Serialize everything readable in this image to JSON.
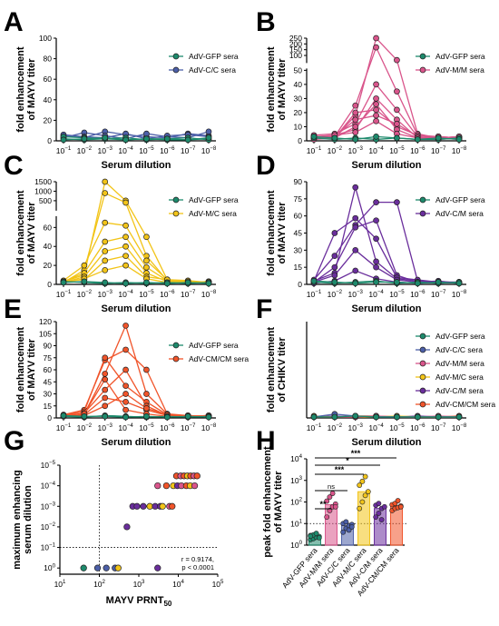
{
  "figure": {
    "colors": {
      "GFP": "#1d8a6c",
      "CC": "#4c5fa8",
      "MM": "#d9558b",
      "MC": "#f2c418",
      "CM": "#6a2e9c",
      "CMCM": "#f0542a"
    },
    "panels": [
      {
        "letter": "A",
        "series": [
          "GFP",
          "CC"
        ],
        "legend": [
          "AdV-GFP sera",
          "AdV-C/C sera"
        ]
      },
      {
        "letter": "B",
        "series": [
          "GFP",
          "MM"
        ],
        "legend": [
          "AdV-GFP sera",
          "AdV-M/M sera"
        ]
      },
      {
        "letter": "C",
        "series": [
          "GFP",
          "MC"
        ],
        "legend": [
          "AdV-GFP sera",
          "AdV-M/C sera"
        ]
      },
      {
        "letter": "D",
        "series": [
          "GFP",
          "CM"
        ],
        "legend": [
          "AdV-GFP sera",
          "AdV-C/M sera"
        ]
      },
      {
        "letter": "E",
        "series": [
          "GFP",
          "CMCM"
        ],
        "legend": [
          "AdV-GFP sera",
          "AdV-CM/CM sera"
        ]
      },
      {
        "letter": "F",
        "series": [
          "GFP",
          "CC",
          "MM",
          "MC",
          "CM",
          "CMCM"
        ],
        "legend": [
          "AdV-GFP sera",
          "AdV-C/C sera",
          "AdV-M/M sera",
          "AdV-M/C sera",
          "AdV-C/M sera",
          "AdV-CM/CM sera"
        ]
      },
      {
        "letter": "G"
      },
      {
        "letter": "H"
      }
    ],
    "xlabel_dilution": "Serum dilution",
    "ylabel_mayv": [
      "fold enhancement",
      "of MAYV titer"
    ],
    "ylabel_chikv": [
      "fold enhancement",
      "of CHIKV titer"
    ],
    "ylabel_g": [
      "maximum enhancing",
      "serum dilution"
    ],
    "ylabel_h": [
      "peak fold enhancement",
      "of MAYV titer"
    ],
    "xlabel_g": "MAYV PRNT50",
    "stats_g": [
      "r = 0.9174,",
      "p < 0.0001"
    ],
    "h_categories": [
      "AdV-GFP sera",
      "AdV-M/M sera",
      "AdV-C/C sera",
      "AdV-M/C sera",
      "AdV-C/M sera",
      "AdV-CM/CM sera"
    ],
    "h_sig": [
      "**",
      "ns",
      "***",
      "*",
      "***"
    ]
  },
  "chart_data": [
    {
      "panel": "A",
      "type": "line",
      "x_exponents": [
        -1,
        -2,
        -3,
        -4,
        -5,
        -6,
        -7,
        -8
      ],
      "ylim": [
        0,
        100
      ],
      "yticks": [
        0,
        20,
        40,
        60,
        80,
        100
      ],
      "series": [
        {
          "name": "AdV-GFP sera",
          "values": [
            [
              2,
              1,
              2,
              1,
              2,
              1,
              1,
              2
            ],
            [
              4,
              3,
              2,
              3,
              1,
              2,
              3,
              1
            ],
            [
              1,
              2,
              3,
              1,
              2,
              2,
              1,
              3
            ]
          ]
        },
        {
          "name": "AdV-C/C sera",
          "values": [
            [
              5,
              3,
              9,
              6,
              4,
              3,
              7,
              5
            ],
            [
              3,
              8,
              5,
              2,
              7,
              4,
              3,
              9
            ],
            [
              6,
              4,
              3,
              7,
              2,
              5,
              6,
              4
            ]
          ]
        }
      ]
    },
    {
      "panel": "B",
      "type": "line",
      "y_break": true,
      "x_exponents": [
        -1,
        -2,
        -3,
        -4,
        -5,
        -6,
        -7,
        -8
      ],
      "ylim_low": [
        0,
        50
      ],
      "ylim_high": [
        50,
        250
      ],
      "yticks": [
        0,
        10,
        20,
        30,
        40,
        50,
        100,
        150,
        200,
        250
      ],
      "series": [
        {
          "name": "AdV-GFP sera",
          "values": [
            [
              2,
              1,
              2,
              1,
              2,
              1,
              1,
              2
            ],
            [
              3,
              2,
              1,
              3,
              2,
              1,
              2,
              1
            ]
          ]
        },
        {
          "name": "AdV-M/M sera",
          "values": [
            [
              3,
              2,
              18,
              250,
              60,
              5,
              2,
              3
            ],
            [
              2,
              3,
              25,
              170,
              35,
              4,
              3,
              2
            ],
            [
              4,
              5,
              12,
              40,
              22,
              3,
              2,
              1
            ],
            [
              2,
              4,
              8,
              30,
              15,
              2,
              3,
              2
            ],
            [
              3,
              2,
              20,
              22,
              10,
              4,
              2,
              3
            ],
            [
              2,
              3,
              15,
              18,
              12,
              3,
              1,
              2
            ],
            [
              1,
              2,
              10,
              26,
              8,
              2,
              3,
              2
            ],
            [
              3,
              4,
              6,
              14,
              5,
              2,
              2,
              3
            ]
          ]
        }
      ]
    },
    {
      "panel": "C",
      "type": "line",
      "y_break": true,
      "x_exponents": [
        -1,
        -2,
        -3,
        -4,
        -5,
        -6,
        -7,
        -8
      ],
      "ylim_low": [
        0,
        70
      ],
      "ylim_high": [
        70,
        1500
      ],
      "yticks": [
        0,
        20,
        40,
        60,
        500,
        1000,
        1500
      ],
      "series": [
        {
          "name": "AdV-GFP sera",
          "values": [
            [
              3,
              2,
              1,
              2,
              1,
              2,
              1,
              2
            ],
            [
              2,
              3,
              2,
              1,
              2,
              1,
              2,
              1
            ]
          ]
        },
        {
          "name": "AdV-M/C sera",
          "values": [
            [
              3,
              10,
              1500,
              500,
              50,
              5,
              2,
              3
            ],
            [
              2,
              15,
              900,
              400,
              30,
              4,
              3,
              2
            ],
            [
              4,
              20,
              65,
              62,
              25,
              5,
              2,
              3
            ],
            [
              3,
              12,
              45,
              50,
              18,
              4,
              3,
              2
            ],
            [
              2,
              8,
              35,
              40,
              12,
              3,
              2,
              3
            ],
            [
              3,
              5,
              25,
              30,
              8,
              5,
              4,
              2
            ],
            [
              2,
              6,
              15,
              20,
              6,
              2,
              3,
              2
            ]
          ]
        }
      ]
    },
    {
      "panel": "D",
      "type": "line",
      "x_exponents": [
        -1,
        -2,
        -3,
        -4,
        -5,
        -6,
        -7,
        -8
      ],
      "ylim": [
        0,
        90
      ],
      "yticks": [
        0,
        15,
        30,
        45,
        60,
        75,
        90
      ],
      "series": [
        {
          "name": "AdV-GFP sera",
          "values": [
            [
              2,
              1,
              2,
              3,
              1,
              2,
              1,
              2
            ],
            [
              3,
              2,
              1,
              2,
              2,
              1,
              2,
              1
            ]
          ]
        },
        {
          "name": "AdV-C/M sera",
          "values": [
            [
              3,
              10,
              85,
              20,
              5,
              3,
              2,
              1
            ],
            [
              4,
              25,
              52,
              72,
              72,
              3,
              2,
              2
            ],
            [
              2,
              15,
              50,
              56,
              8,
              2,
              3,
              1
            ],
            [
              3,
              45,
              58,
              40,
              6,
              4,
              2,
              2
            ],
            [
              2,
              8,
              30,
              15,
              4,
              2,
              1,
              2
            ],
            [
              1,
              3,
              12,
              5,
              2,
              1,
              2,
              1
            ]
          ]
        }
      ]
    },
    {
      "panel": "E",
      "type": "line",
      "x_exponents": [
        -1,
        -2,
        -3,
        -4,
        -5,
        -6,
        -7,
        -8
      ],
      "ylim": [
        0,
        120
      ],
      "yticks": [
        0,
        15,
        30,
        45,
        60,
        75,
        90,
        105,
        120
      ],
      "series": [
        {
          "name": "AdV-GFP sera",
          "values": [
            [
              2,
              1,
              3,
              2,
              1,
              2,
              1,
              2
            ],
            [
              3,
              2,
              2,
              1,
              2,
              1,
              2,
              1
            ]
          ]
        },
        {
          "name": "AdV-CM/CM sera",
          "values": [
            [
              3,
              5,
              55,
              115,
              30,
              5,
              3,
              2
            ],
            [
              4,
              10,
              72,
              85,
              60,
              5,
              2,
              3
            ],
            [
              3,
              8,
              75,
              40,
              20,
              4,
              2,
              2
            ],
            [
              2,
              6,
              35,
              60,
              15,
              3,
              2,
              3
            ],
            [
              3,
              4,
              25,
              20,
              10,
              3,
              2,
              2
            ],
            [
              2,
              3,
              15,
              30,
              12,
              4,
              3,
              2
            ],
            [
              3,
              5,
              48,
              10,
              5,
              2,
              2,
              3
            ]
          ]
        }
      ]
    },
    {
      "panel": "F",
      "type": "line",
      "x_exponents": [
        -1,
        -2,
        -3,
        -4,
        -5,
        -6,
        -7,
        -8
      ],
      "ylim": [
        0,
        100
      ],
      "series": [
        {
          "name": "AdV-GFP sera",
          "values": [
            [
              1,
              1,
              2,
              1,
              1,
              1,
              1,
              1
            ]
          ]
        },
        {
          "name": "AdV-C/C sera",
          "values": [
            [
              1,
              4,
              2,
              1,
              1,
              1,
              1,
              1
            ]
          ]
        },
        {
          "name": "AdV-M/M sera",
          "values": [
            [
              1,
              1,
              1,
              2,
              1,
              1,
              2,
              1
            ]
          ]
        },
        {
          "name": "AdV-M/C sera",
          "values": [
            [
              2,
              1,
              1,
              1,
              2,
              1,
              1,
              1
            ]
          ]
        },
        {
          "name": "AdV-C/M sera",
          "values": [
            [
              1,
              2,
              1,
              1,
              1,
              2,
              1,
              1
            ]
          ]
        },
        {
          "name": "AdV-CM/CM sera",
          "values": [
            [
              1,
              1,
              2,
              2,
              1,
              1,
              1,
              2
            ]
          ]
        }
      ]
    },
    {
      "panel": "G",
      "type": "scatter",
      "xscale": "log",
      "yscale": "log",
      "xlim": [
        10,
        100000
      ],
      "ylim": [
        0.5,
        100000
      ],
      "x_ticks": [
        "10^1",
        "10^2",
        "10^3",
        "10^4",
        "10^5"
      ],
      "y_ticks": [
        "10^0",
        "10^-1",
        "10^-2",
        "10^-3",
        "10^-4",
        "10^-5"
      ],
      "points": [
        {
          "series": "GFP",
          "x": 40,
          "y": 1
        },
        {
          "series": "CC",
          "x": 90,
          "y": 1
        },
        {
          "series": "CC",
          "x": 150,
          "y": 1
        },
        {
          "series": "CC",
          "x": 250,
          "y": 1
        },
        {
          "series": "MC",
          "x": 300,
          "y": 1
        },
        {
          "series": "CM",
          "x": 3000,
          "y": 1
        },
        {
          "series": "CM",
          "x": 500,
          "y": 100
        },
        {
          "series": "CM",
          "x": 700,
          "y": 1000
        },
        {
          "series": "CM",
          "x": 900,
          "y": 1000
        },
        {
          "series": "CM",
          "x": 1300,
          "y": 1000
        },
        {
          "series": "MC",
          "x": 1900,
          "y": 1000
        },
        {
          "series": "CM",
          "x": 2600,
          "y": 1000
        },
        {
          "series": "CM",
          "x": 3500,
          "y": 1000
        },
        {
          "series": "MC",
          "x": 4000,
          "y": 1000
        },
        {
          "series": "MM",
          "x": 6000,
          "y": 1000
        },
        {
          "series": "CMCM",
          "x": 7000,
          "y": 1000
        },
        {
          "series": "MM",
          "x": 3000,
          "y": 10000
        },
        {
          "series": "CMCM",
          "x": 5000,
          "y": 10000
        },
        {
          "series": "MC",
          "x": 7500,
          "y": 10000
        },
        {
          "series": "CM",
          "x": 9500,
          "y": 10000
        },
        {
          "series": "MM",
          "x": 12000,
          "y": 10000
        },
        {
          "series": "CMCM",
          "x": 16000,
          "y": 10000
        },
        {
          "series": "MC",
          "x": 20000,
          "y": 10000
        },
        {
          "series": "MM",
          "x": 26000,
          "y": 10000
        },
        {
          "series": "CMCM",
          "x": 9000,
          "y": 30000
        },
        {
          "series": "MM",
          "x": 11500,
          "y": 30000
        },
        {
          "series": "CMCM",
          "x": 14000,
          "y": 30000
        },
        {
          "series": "MC",
          "x": 17000,
          "y": 30000
        },
        {
          "series": "CMCM",
          "x": 20500,
          "y": 30000
        },
        {
          "series": "MM",
          "x": 25000,
          "y": 30000
        },
        {
          "series": "CMCM",
          "x": 30000,
          "y": 30000
        }
      ]
    },
    {
      "panel": "H",
      "type": "bar",
      "yscale": "log",
      "ylim": [
        1,
        10000
      ],
      "y_ticks": [
        "10^0",
        "10^1",
        "10^2",
        "10^3",
        "10^4"
      ],
      "categories": [
        "AdV-GFP sera",
        "AdV-M/M sera",
        "AdV-C/C sera",
        "AdV-M/C sera",
        "AdV-C/M sera",
        "AdV-CM/CM sera"
      ],
      "values": [
        2.5,
        75,
        8,
        300,
        50,
        60
      ],
      "points": [
        [
          1.8,
          2,
          2.3,
          2.5,
          2.8,
          3,
          3.5,
          2.2,
          2.6
        ],
        [
          20,
          40,
          60,
          80,
          110,
          170,
          250,
          60
        ],
        [
          4,
          6,
          8,
          9,
          10,
          12,
          5,
          7
        ],
        [
          50,
          100,
          200,
          300,
          600,
          900,
          1500
        ],
        [
          20,
          30,
          50,
          60,
          70,
          85,
          15
        ],
        [
          40,
          50,
          55,
          65,
          75,
          85,
          115,
          60
        ]
      ],
      "reference_line": 10
    }
  ]
}
